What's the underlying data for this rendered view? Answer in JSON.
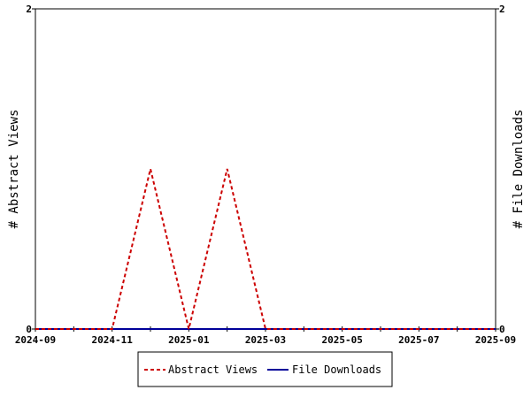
{
  "chart_data": {
    "type": "line",
    "x_axis": {
      "tick_labels": [
        "2024-09",
        "2024-11",
        "2025-01",
        "2025-03",
        "2025-05",
        "2025-07",
        "2025-09"
      ],
      "range": [
        "2024-09",
        "2025-09"
      ]
    },
    "y_left": {
      "label": "# Abstract Views",
      "ticks": [
        "0",
        "2"
      ],
      "range": [
        0,
        2
      ]
    },
    "y_right": {
      "label": "# File Downloads",
      "ticks": [
        "0",
        "2"
      ],
      "range": [
        0,
        2
      ]
    },
    "x": [
      "2024-09",
      "2024-10",
      "2024-11",
      "2024-12",
      "2025-01",
      "2025-02",
      "2025-03",
      "2025-04",
      "2025-05",
      "2025-06",
      "2025-07",
      "2025-08",
      "2025-09"
    ],
    "series": [
      {
        "name": "Abstract Views",
        "axis": "left",
        "color": "#cc0000",
        "dash": "dashed",
        "values": [
          0,
          0,
          0,
          1,
          0,
          1,
          0,
          0,
          0,
          0,
          0,
          0,
          0
        ]
      },
      {
        "name": "File Downloads",
        "axis": "right",
        "color": "#000099",
        "dash": "solid",
        "values": [
          0,
          0,
          0,
          0,
          0,
          0,
          0,
          0,
          0,
          0,
          0,
          0,
          0
        ]
      }
    ],
    "grid": false,
    "legend_position": "bottom"
  }
}
